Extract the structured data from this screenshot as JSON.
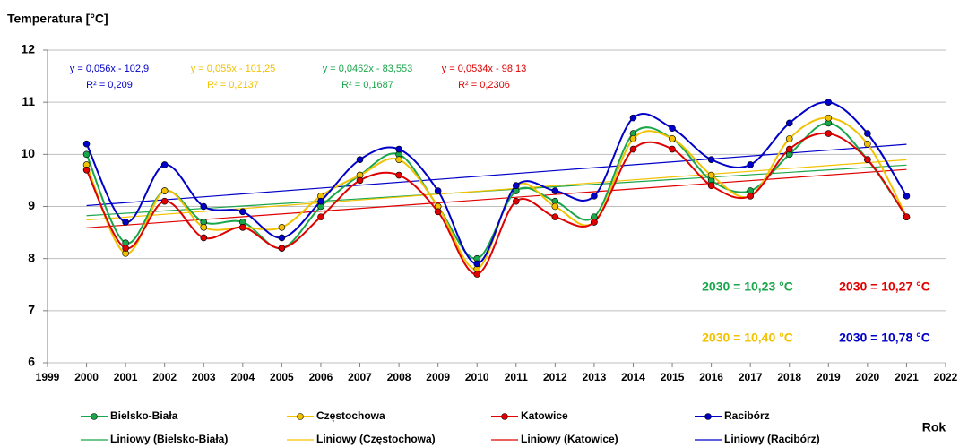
{
  "chart_data": {
    "type": "line",
    "ylabel": "Temperatura [°C]",
    "xlabel": "Rok",
    "x": [
      2000,
      2001,
      2002,
      2003,
      2004,
      2005,
      2006,
      2007,
      2008,
      2009,
      2010,
      2011,
      2012,
      2013,
      2014,
      2015,
      2016,
      2017,
      2018,
      2019,
      2020,
      2021
    ],
    "xlim": [
      1999,
      2022
    ],
    "xticks": [
      1999,
      2000,
      2001,
      2002,
      2003,
      2004,
      2005,
      2006,
      2007,
      2008,
      2009,
      2010,
      2011,
      2012,
      2013,
      2014,
      2015,
      2016,
      2017,
      2018,
      2019,
      2020,
      2021,
      2022
    ],
    "ylim": [
      6,
      12
    ],
    "yticks": [
      6,
      7,
      8,
      9,
      10,
      11,
      12
    ],
    "grid": true,
    "series": [
      {
        "name": "Bielsko-Biała",
        "trend_name": "Liniowy (Bielsko-Biała)",
        "color": "#1aa64a",
        "values": [
          10.0,
          8.3,
          9.3,
          8.7,
          8.7,
          8.2,
          9.0,
          9.6,
          10.0,
          9.0,
          8.0,
          9.3,
          9.1,
          8.8,
          10.4,
          10.3,
          9.5,
          9.3,
          10.0,
          10.6,
          9.9,
          8.8
        ]
      },
      {
        "name": "Częstochowa",
        "trend_name": "Liniowy (Częstochowa)",
        "color": "#f2c200",
        "values": [
          9.8,
          8.1,
          9.3,
          8.6,
          8.6,
          8.6,
          9.2,
          9.6,
          9.9,
          9.0,
          7.8,
          9.4,
          9.0,
          8.7,
          10.3,
          10.3,
          9.6,
          9.2,
          10.3,
          10.7,
          10.2,
          8.8
        ]
      },
      {
        "name": "Katowice",
        "trend_name": "Liniowy (Katowice)",
        "color": "#e00000",
        "values": [
          9.7,
          8.2,
          9.1,
          8.4,
          8.6,
          8.2,
          8.8,
          9.5,
          9.6,
          8.9,
          7.7,
          9.1,
          8.8,
          8.7,
          10.1,
          10.1,
          9.4,
          9.2,
          10.1,
          10.4,
          9.9,
          8.8
        ]
      },
      {
        "name": "Racibórz",
        "trend_name": "Liniowy (Racibórz)",
        "color": "#0000c8",
        "values": [
          10.2,
          8.7,
          9.8,
          9.0,
          8.9,
          8.4,
          9.1,
          9.9,
          10.1,
          9.3,
          7.9,
          9.4,
          9.3,
          9.2,
          10.7,
          10.5,
          9.9,
          9.8,
          10.6,
          11.0,
          10.4,
          9.2
        ]
      }
    ],
    "equations": [
      {
        "equation": "y = 0,056x - 102,9",
        "r2": "R² = 0,209",
        "color": "#0000c8"
      },
      {
        "equation": "y = 0,055x - 101,25",
        "r2": "R² = 0,2137",
        "color": "#f2c200"
      },
      {
        "equation": "y = 0,0462x - 83,553",
        "r2": "R² = 0,1687",
        "color": "#1aa64a"
      },
      {
        "equation": "y = 0,0534x - 98,13",
        "r2": "R² = 0,2306",
        "color": "#e00000"
      }
    ],
    "annotations": [
      {
        "text": "2030 = 10,23 °C",
        "color": "#1aa64a"
      },
      {
        "text": "2030 = 10,27 °C",
        "color": "#e00000"
      },
      {
        "text": "2030 = 10,40 °C",
        "color": "#f2c200"
      },
      {
        "text": "2030 = 10,78 °C",
        "color": "#0000c8"
      }
    ]
  }
}
